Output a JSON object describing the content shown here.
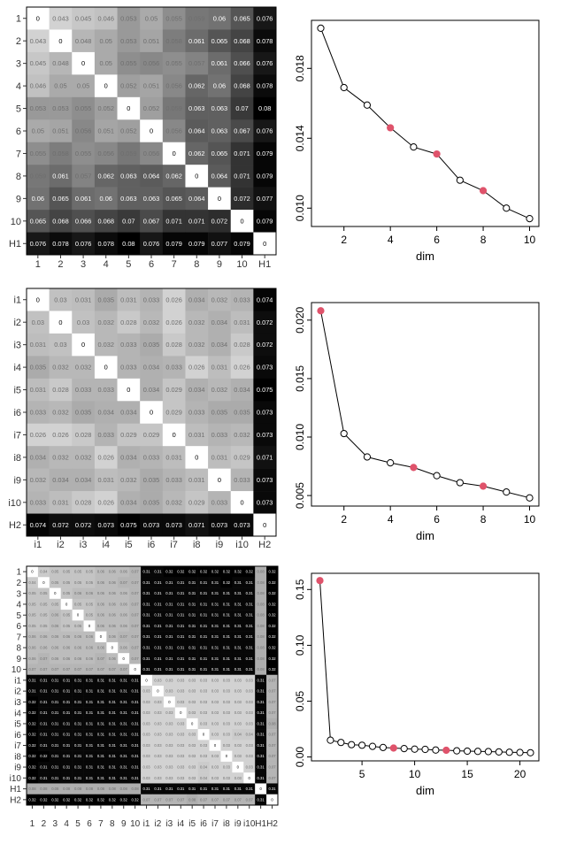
{
  "chart_data": [
    {
      "type": "heatmap",
      "row_labels": [
        "1",
        "2",
        "3",
        "4",
        "5",
        "6",
        "7",
        "8",
        "9",
        "10",
        "H1"
      ],
      "col_labels": [
        "1",
        "2",
        "3",
        "4",
        "5",
        "6",
        "7",
        "8",
        "9",
        "10",
        "H1"
      ],
      "values": [
        [
          "0",
          "0.043",
          "0.045",
          "0.046",
          "0.053",
          "0.05",
          "0.055",
          "0.059",
          "0.06",
          "0.065",
          "0.076"
        ],
        [
          "0.043",
          "0",
          "0.048",
          "0.05",
          "0.053",
          "0.051",
          "0.058",
          "0.061",
          "0.065",
          "0.068",
          "0.078"
        ],
        [
          "0.045",
          "0.048",
          "0",
          "0.05",
          "0.055",
          "0.056",
          "0.055",
          "0.057",
          "0.061",
          "0.066",
          "0.076"
        ],
        [
          "0.046",
          "0.05",
          "0.05",
          "0",
          "0.052",
          "0.051",
          "0.056",
          "0.062",
          "0.06",
          "0.068",
          "0.078"
        ],
        [
          "0.053",
          "0.053",
          "0.055",
          "0.052",
          "0",
          "0.052",
          "0.059",
          "0.063",
          "0.063",
          "0.07",
          "0.08"
        ],
        [
          "0.05",
          "0.051",
          "0.056",
          "0.051",
          "0.052",
          "0",
          "0.056",
          "0.064",
          "0.063",
          "0.067",
          "0.076"
        ],
        [
          "0.055",
          "0.058",
          "0.055",
          "0.056",
          "0.059",
          "0.056",
          "0",
          "0.062",
          "0.065",
          "0.071",
          "0.079"
        ],
        [
          "0.059",
          "0.061",
          "0.057",
          "0.062",
          "0.063",
          "0.064",
          "0.062",
          "0",
          "0.064",
          "0.071",
          "0.079"
        ],
        [
          "0.06",
          "0.065",
          "0.061",
          "0.06",
          "0.063",
          "0.063",
          "0.065",
          "0.064",
          "0",
          "0.072",
          "0.077"
        ],
        [
          "0.065",
          "0.068",
          "0.066",
          "0.068",
          "0.07",
          "0.067",
          "0.071",
          "0.071",
          "0.072",
          "0",
          "0.079"
        ],
        [
          "0.076",
          "0.078",
          "0.076",
          "0.078",
          "0.08",
          "0.076",
          "0.079",
          "0.079",
          "0.077",
          "0.079",
          "0"
        ]
      ]
    },
    {
      "type": "scatter",
      "x": [
        1,
        2,
        3,
        4,
        5,
        6,
        7,
        8,
        9,
        10
      ],
      "y": [
        0.0203,
        0.0169,
        0.0159,
        0.0146,
        0.0135,
        0.0131,
        0.0116,
        0.011,
        0.01,
        0.0094
      ],
      "highlight_x": [
        4,
        6,
        8
      ],
      "xlabel": "dim",
      "xticks": [
        2,
        4,
        6,
        8,
        10
      ],
      "yticks": [
        "0.010",
        "0.014",
        "0.018"
      ],
      "xlim": [
        0.6,
        10.4
      ],
      "ylim": [
        0.00895,
        0.02075
      ]
    },
    {
      "type": "heatmap",
      "row_labels": [
        "i1",
        "i2",
        "i3",
        "i4",
        "i5",
        "i6",
        "i7",
        "i8",
        "i9",
        "i10",
        "H2"
      ],
      "col_labels": [
        "i1",
        "i2",
        "i3",
        "i4",
        "i5",
        "i6",
        "i7",
        "i8",
        "i9",
        "i10",
        "H2"
      ],
      "values": [
        [
          "0",
          "0.03",
          "0.031",
          "0.035",
          "0.031",
          "0.033",
          "0.026",
          "0.034",
          "0.032",
          "0.033",
          "0.074"
        ],
        [
          "0.03",
          "0",
          "0.03",
          "0.032",
          "0.028",
          "0.032",
          "0.026",
          "0.032",
          "0.034",
          "0.031",
          "0.072"
        ],
        [
          "0.031",
          "0.03",
          "0",
          "0.032",
          "0.033",
          "0.035",
          "0.028",
          "0.032",
          "0.034",
          "0.028",
          "0.072"
        ],
        [
          "0.035",
          "0.032",
          "0.032",
          "0",
          "0.033",
          "0.034",
          "0.033",
          "0.026",
          "0.031",
          "0.026",
          "0.073"
        ],
        [
          "0.031",
          "0.028",
          "0.033",
          "0.033",
          "0",
          "0.034",
          "0.029",
          "0.034",
          "0.032",
          "0.034",
          "0.075"
        ],
        [
          "0.033",
          "0.032",
          "0.035",
          "0.034",
          "0.034",
          "0",
          "0.029",
          "0.033",
          "0.035",
          "0.035",
          "0.073"
        ],
        [
          "0.026",
          "0.026",
          "0.028",
          "0.033",
          "0.029",
          "0.029",
          "0",
          "0.031",
          "0.033",
          "0.032",
          "0.073"
        ],
        [
          "0.034",
          "0.032",
          "0.032",
          "0.026",
          "0.034",
          "0.033",
          "0.031",
          "0",
          "0.031",
          "0.029",
          "0.071"
        ],
        [
          "0.032",
          "0.034",
          "0.034",
          "0.031",
          "0.032",
          "0.035",
          "0.033",
          "0.031",
          "0",
          "0.033",
          "0.073"
        ],
        [
          "0.033",
          "0.031",
          "0.028",
          "0.026",
          "0.034",
          "0.035",
          "0.032",
          "0.029",
          "0.033",
          "0",
          "0.073"
        ],
        [
          "0.074",
          "0.072",
          "0.072",
          "0.073",
          "0.075",
          "0.073",
          "0.073",
          "0.071",
          "0.073",
          "0.073",
          "0"
        ]
      ]
    },
    {
      "type": "scatter",
      "x": [
        1,
        2,
        3,
        4,
        5,
        6,
        7,
        8,
        9,
        10
      ],
      "y": [
        0.0208,
        0.0103,
        0.0083,
        0.0078,
        0.0074,
        0.0067,
        0.0061,
        0.0058,
        0.0053,
        0.0048
      ],
      "highlight_x": [
        1,
        5,
        8
      ],
      "xlabel": "dim",
      "xticks": [
        2,
        4,
        6,
        8,
        10
      ],
      "yticks": [
        "0.005",
        "0.010",
        "0.015",
        "0.020"
      ],
      "xlim": [
        0.6,
        10.4
      ],
      "ylim": [
        0.0041,
        0.0215
      ]
    },
    {
      "type": "heatmap",
      "row_labels": [
        "1",
        "2",
        "3",
        "4",
        "5",
        "6",
        "7",
        "8",
        "9",
        "10",
        "i1",
        "i2",
        "i3",
        "i4",
        "i5",
        "i6",
        "i7",
        "i8",
        "i9",
        "i10",
        "H1",
        "H2"
      ],
      "col_labels": [
        "1",
        "2",
        "3",
        "4",
        "5",
        "6",
        "7",
        "8",
        "9",
        "10",
        "i1",
        "i2",
        "i3",
        "i4",
        "i5",
        "i6",
        "i7",
        "i8",
        "i9",
        "i10",
        "H1",
        "H2"
      ],
      "values": [
        [
          "0",
          "0.04",
          "0.05",
          "0.05",
          "0.05",
          "0.05",
          "0.06",
          "0.06",
          "0.06",
          "0.07",
          "0.31",
          "0.31",
          "0.32",
          "0.32",
          "0.32",
          "0.32",
          "0.32",
          "0.32",
          "0.32",
          "0.32",
          "0.08",
          "0.32"
        ],
        [
          "0.04",
          "0",
          "0.05",
          "0.05",
          "0.05",
          "0.05",
          "0.06",
          "0.06",
          "0.07",
          "0.07",
          "0.31",
          "0.31",
          "0.31",
          "0.31",
          "0.31",
          "0.31",
          "0.31",
          "0.32",
          "0.31",
          "0.31",
          "0.08",
          "0.32"
        ],
        [
          "0.05",
          "0.05",
          "0",
          "0.05",
          "0.06",
          "0.06",
          "0.06",
          "0.06",
          "0.06",
          "0.07",
          "0.31",
          "0.31",
          "0.31",
          "0.31",
          "0.31",
          "0.31",
          "0.31",
          "0.31",
          "0.31",
          "0.31",
          "0.08",
          "0.32"
        ],
        [
          "0.05",
          "0.05",
          "0.05",
          "0",
          "0.05",
          "0.05",
          "0.06",
          "0.06",
          "0.06",
          "0.07",
          "0.31",
          "0.31",
          "0.31",
          "0.31",
          "0.31",
          "0.31",
          "0.31",
          "0.31",
          "0.31",
          "0.31",
          "0.08",
          "0.32"
        ],
        [
          "0.05",
          "0.05",
          "0.06",
          "0.05",
          "0",
          "0.05",
          "0.06",
          "0.06",
          "0.06",
          "0.07",
          "0.31",
          "0.31",
          "0.31",
          "0.31",
          "0.31",
          "0.31",
          "0.31",
          "0.31",
          "0.31",
          "0.31",
          "0.08",
          "0.32"
        ],
        [
          "0.05",
          "0.05",
          "0.06",
          "0.05",
          "0.05",
          "0",
          "0.06",
          "0.06",
          "0.06",
          "0.07",
          "0.31",
          "0.31",
          "0.31",
          "0.31",
          "0.31",
          "0.31",
          "0.31",
          "0.31",
          "0.31",
          "0.31",
          "0.08",
          "0.32"
        ],
        [
          "0.06",
          "0.06",
          "0.06",
          "0.06",
          "0.06",
          "0.06",
          "0",
          "0.06",
          "0.07",
          "0.07",
          "0.31",
          "0.31",
          "0.31",
          "0.31",
          "0.31",
          "0.31",
          "0.31",
          "0.31",
          "0.31",
          "0.31",
          "0.08",
          "0.32"
        ],
        [
          "0.06",
          "0.06",
          "0.06",
          "0.06",
          "0.06",
          "0.06",
          "0.06",
          "0",
          "0.06",
          "0.07",
          "0.31",
          "0.31",
          "0.31",
          "0.31",
          "0.31",
          "0.31",
          "0.31",
          "0.31",
          "0.31",
          "0.31",
          "0.08",
          "0.32"
        ],
        [
          "0.06",
          "0.07",
          "0.06",
          "0.06",
          "0.06",
          "0.06",
          "0.07",
          "0.06",
          "0",
          "0.07",
          "0.31",
          "0.31",
          "0.31",
          "0.31",
          "0.31",
          "0.31",
          "0.31",
          "0.31",
          "0.31",
          "0.31",
          "0.08",
          "0.32"
        ],
        [
          "0.07",
          "0.07",
          "0.07",
          "0.07",
          "0.07",
          "0.07",
          "0.07",
          "0.07",
          "0.07",
          "0",
          "0.31",
          "0.31",
          "0.31",
          "0.31",
          "0.31",
          "0.31",
          "0.31",
          "0.31",
          "0.31",
          "0.31",
          "0.08",
          "0.32"
        ],
        [
          "0.31",
          "0.31",
          "0.31",
          "0.31",
          "0.31",
          "0.31",
          "0.31",
          "0.31",
          "0.31",
          "0.31",
          "0",
          "0.03",
          "0.03",
          "0.03",
          "0.03",
          "0.03",
          "0.03",
          "0.03",
          "0.03",
          "0.03",
          "0.31",
          "0.07"
        ],
        [
          "0.31",
          "0.31",
          "0.31",
          "0.31",
          "0.31",
          "0.31",
          "0.31",
          "0.31",
          "0.31",
          "0.31",
          "0.03",
          "0",
          "0.03",
          "0.03",
          "0.03",
          "0.03",
          "0.03",
          "0.03",
          "0.03",
          "0.03",
          "0.31",
          "0.07"
        ],
        [
          "0.32",
          "0.31",
          "0.31",
          "0.31",
          "0.31",
          "0.31",
          "0.31",
          "0.31",
          "0.31",
          "0.31",
          "0.03",
          "0.03",
          "0",
          "0.03",
          "0.03",
          "0.03",
          "0.03",
          "0.03",
          "0.03",
          "0.03",
          "0.31",
          "0.07"
        ],
        [
          "0.32",
          "0.31",
          "0.31",
          "0.31",
          "0.31",
          "0.31",
          "0.31",
          "0.31",
          "0.31",
          "0.31",
          "0.03",
          "0.03",
          "0.03",
          "0",
          "0.03",
          "0.03",
          "0.03",
          "0.03",
          "0.03",
          "0.03",
          "0.31",
          "0.07"
        ],
        [
          "0.32",
          "0.31",
          "0.31",
          "0.31",
          "0.31",
          "0.31",
          "0.31",
          "0.31",
          "0.31",
          "0.31",
          "0.03",
          "0.03",
          "0.03",
          "0.03",
          "0",
          "0.03",
          "0.03",
          "0.03",
          "0.03",
          "0.03",
          "0.31",
          "0.08"
        ],
        [
          "0.32",
          "0.31",
          "0.31",
          "0.31",
          "0.31",
          "0.31",
          "0.31",
          "0.31",
          "0.31",
          "0.31",
          "0.03",
          "0.03",
          "0.03",
          "0.03",
          "0.03",
          "0",
          "0.03",
          "0.03",
          "0.04",
          "0.04",
          "0.31",
          "0.07"
        ],
        [
          "0.32",
          "0.31",
          "0.31",
          "0.31",
          "0.31",
          "0.31",
          "0.31",
          "0.31",
          "0.31",
          "0.31",
          "0.03",
          "0.03",
          "0.03",
          "0.03",
          "0.03",
          "0.03",
          "0",
          "0.03",
          "0.03",
          "0.03",
          "0.31",
          "0.07"
        ],
        [
          "0.32",
          "0.32",
          "0.31",
          "0.31",
          "0.31",
          "0.31",
          "0.31",
          "0.31",
          "0.31",
          "0.31",
          "0.03",
          "0.03",
          "0.03",
          "0.03",
          "0.03",
          "0.03",
          "0.03",
          "0",
          "0.03",
          "0.03",
          "0.31",
          "0.07"
        ],
        [
          "0.32",
          "0.31",
          "0.31",
          "0.31",
          "0.31",
          "0.31",
          "0.31",
          "0.31",
          "0.31",
          "0.31",
          "0.03",
          "0.03",
          "0.03",
          "0.03",
          "0.03",
          "0.04",
          "0.03",
          "0.03",
          "0",
          "0.03",
          "0.31",
          "0.07"
        ],
        [
          "0.32",
          "0.31",
          "0.31",
          "0.31",
          "0.31",
          "0.31",
          "0.31",
          "0.31",
          "0.31",
          "0.31",
          "0.03",
          "0.03",
          "0.03",
          "0.03",
          "0.03",
          "0.04",
          "0.03",
          "0.03",
          "0.03",
          "0",
          "0.31",
          "0.07"
        ],
        [
          "0.08",
          "0.08",
          "0.08",
          "0.08",
          "0.08",
          "0.08",
          "0.08",
          "0.08",
          "0.08",
          "0.08",
          "0.31",
          "0.31",
          "0.31",
          "0.31",
          "0.31",
          "0.31",
          "0.31",
          "0.31",
          "0.31",
          "0.31",
          "0",
          "0.31"
        ],
        [
          "0.32",
          "0.32",
          "0.32",
          "0.32",
          "0.32",
          "0.32",
          "0.32",
          "0.32",
          "0.32",
          "0.32",
          "0.07",
          "0.07",
          "0.07",
          "0.07",
          "0.08",
          "0.07",
          "0.07",
          "0.07",
          "0.07",
          "0.07",
          "0.31",
          "0"
        ]
      ]
    },
    {
      "type": "scatter",
      "x": [
        1,
        2,
        3,
        4,
        5,
        6,
        7,
        8,
        9,
        10,
        11,
        12,
        13,
        14,
        15,
        16,
        17,
        18,
        19,
        20,
        21
      ],
      "y": [
        0.158,
        0.015,
        0.013,
        0.011,
        0.0105,
        0.0095,
        0.0085,
        0.008,
        0.0075,
        0.007,
        0.0068,
        0.0062,
        0.006,
        0.0055,
        0.0052,
        0.005,
        0.0048,
        0.0045,
        0.0042,
        0.004,
        0.0038
      ],
      "highlight_x": [
        1,
        8,
        13
      ],
      "xlabel": "dim",
      "xticks": [
        5,
        10,
        15,
        20
      ],
      "yticks": [
        "0.00",
        "0.05",
        "0.10",
        "0.15"
      ],
      "xlim": [
        0.2,
        21.8
      ],
      "ylim": [
        -0.0035,
        0.1645
      ]
    }
  ],
  "colors": {
    "highlight": "#df536b",
    "line": "#000000",
    "box": "#000000",
    "cell_text_dark": "#000000",
    "cell_text_light": "#ffffff"
  }
}
